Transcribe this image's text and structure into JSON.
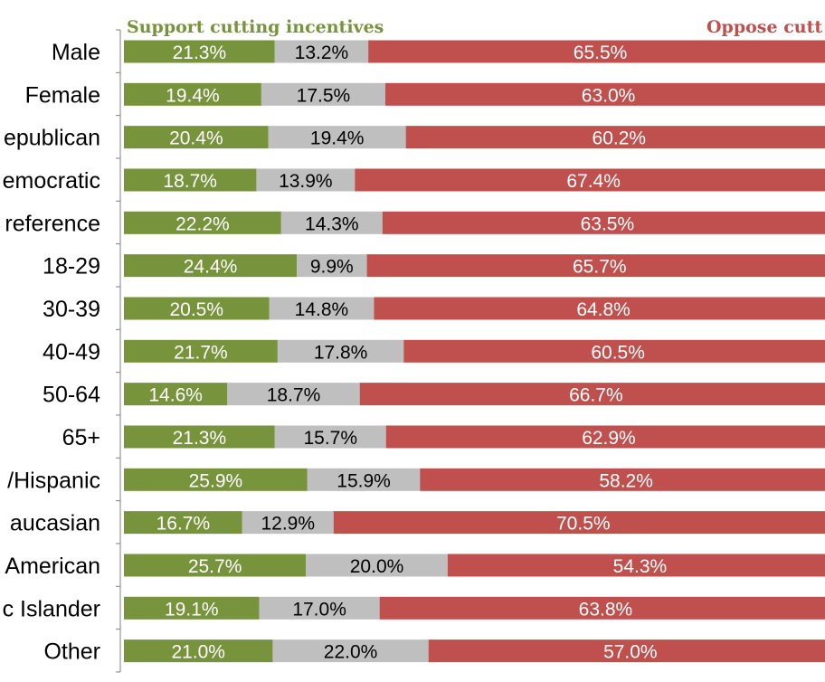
{
  "chart_data": {
    "type": "bar",
    "stacked": true,
    "orientation": "horizontal",
    "percent_scale": true,
    "grid": false,
    "legend_position": "top",
    "categories": [
      "Male",
      "Female",
      "epublican",
      "emocratic",
      "reference",
      "18-29",
      "30-39",
      "40-49",
      "50-64",
      "65+",
      "/Hispanic",
      "aucasian",
      "American",
      "c Islander",
      "Other"
    ],
    "series": [
      {
        "name": "Support cutting incentives",
        "color": "#77933c",
        "label_color": "#ffffff",
        "values": [
          21.3,
          19.4,
          20.4,
          18.7,
          22.2,
          24.4,
          20.5,
          21.7,
          14.6,
          21.3,
          25.9,
          16.7,
          25.7,
          19.1,
          21.0
        ],
        "labels": [
          "21.3%",
          "19.4%",
          "20.4%",
          "18.7%",
          "22.2%",
          "24.4%",
          "20.5%",
          "21.7%",
          "14.6%",
          "21.3%",
          "25.9%",
          "16.7%",
          "25.7%",
          "19.1%",
          "21.0%"
        ]
      },
      {
        "color": "#bfbfbf",
        "label_color": "#000000",
        "values": [
          13.2,
          17.5,
          19.4,
          13.9,
          14.3,
          9.9,
          14.8,
          17.8,
          18.7,
          15.7,
          15.9,
          12.9,
          20.0,
          17.0,
          22.0
        ],
        "labels": [
          "13.2%",
          "17.5%",
          "19.4%",
          "13.9%",
          "14.3%",
          "9.9%",
          "14.8%",
          "17.8%",
          "18.7%",
          "15.7%",
          "15.9%",
          "12.9%",
          "20.0%",
          "17.0%",
          "22.0%"
        ]
      },
      {
        "name": "Oppose cutt",
        "color": "#c0504d",
        "label_color": "#ffffff",
        "values": [
          65.5,
          63.0,
          60.2,
          67.4,
          63.5,
          65.7,
          64.8,
          60.5,
          66.7,
          62.9,
          58.2,
          70.5,
          54.3,
          63.8,
          57.0
        ],
        "labels": [
          "65.5%",
          "63.0%",
          "60.2%",
          "67.4%",
          "63.5%",
          "65.7%",
          "64.8%",
          "60.5%",
          "66.7%",
          "62.9%",
          "58.2%",
          "70.5%",
          "54.3%",
          "63.8%",
          "57.0%"
        ]
      }
    ],
    "legend": {
      "support_label": "Support cutting incentives",
      "support_color": "#77933c",
      "oppose_label": "Oppose cutt",
      "oppose_color": "#c0504d"
    }
  }
}
